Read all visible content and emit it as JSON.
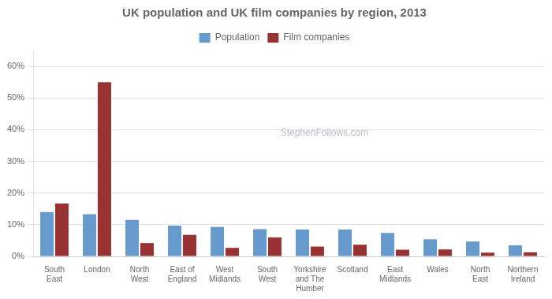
{
  "chart_data": {
    "type": "bar",
    "title": "UK population and UK film companies by region, 2013",
    "categories": [
      "South\nEast",
      "London",
      "North\nWest",
      "East of\nEngland",
      "West\nMidlands",
      "South\nWest",
      "Yorkshire\nand The\nHumber",
      "Scotland",
      "East\nMidlands",
      "Wales",
      "North\nEast",
      "Northern\nIreland"
    ],
    "series": [
      {
        "name": "Population",
        "color": "#6699CC",
        "values": [
          0.14,
          0.133,
          0.115,
          0.097,
          0.093,
          0.086,
          0.085,
          0.085,
          0.074,
          0.054,
          0.047,
          0.035
        ]
      },
      {
        "name": "Film companies",
        "color": "#993333",
        "values": [
          0.167,
          0.55,
          0.042,
          0.068,
          0.027,
          0.06,
          0.031,
          0.037,
          0.021,
          0.022,
          0.012,
          0.013
        ]
      }
    ],
    "ylim": [
      0,
      0.65
    ],
    "yticks": [
      {
        "value": 0.0,
        "label": "0%"
      },
      {
        "value": 0.1,
        "label": "10%"
      },
      {
        "value": 0.2,
        "label": "20%"
      },
      {
        "value": 0.3,
        "label": "30%"
      },
      {
        "value": 0.4,
        "label": "40%"
      },
      {
        "value": 0.5,
        "label": "50%"
      },
      {
        "value": 0.6,
        "label": "60%"
      }
    ],
    "grid": true,
    "legend": "top",
    "annotations": [
      {
        "text": "StephenFollows.com",
        "color": "#BBBBCC"
      }
    ]
  }
}
